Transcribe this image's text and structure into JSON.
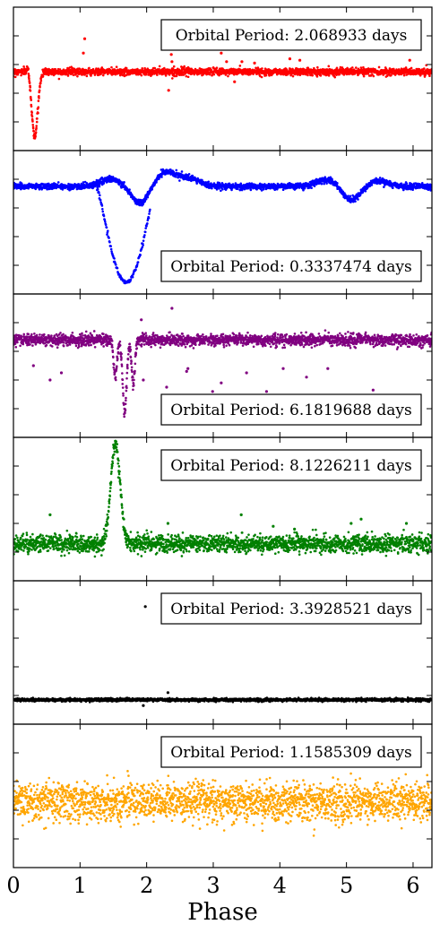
{
  "chart_data": {
    "type": "scatter",
    "xlabel": "Phase",
    "xlim": [
      0,
      6.2832
    ],
    "x_ticks": [
      0,
      1,
      2,
      3,
      4,
      5,
      6
    ],
    "x_tick_labels": [
      "0",
      "1",
      "2",
      "3",
      "4",
      "5",
      "6"
    ],
    "shared_x": true,
    "panels": [
      {
        "name": "Orbital Period: 2.068933 days",
        "color": "#ff0000",
        "label_position": "top-right",
        "ylim": [
          0,
          1
        ],
        "baseline": 0.55,
        "noise": 0.012,
        "features": [
          {
            "center": 0.32,
            "width": 0.045,
            "depth": -0.45,
            "note": "primary dip"
          },
          {
            "center": 0.22,
            "width": 0.02,
            "depth": 0.05,
            "note": "pre-dip bump"
          }
        ],
        "scatter_points": [
          {
            "x": 1.07,
            "y": 0.78
          },
          {
            "x": 1.05,
            "y": 0.68
          },
          {
            "x": 2.35,
            "y": 0.73
          },
          {
            "x": 2.37,
            "y": 0.67
          },
          {
            "x": 2.33,
            "y": 0.42
          },
          {
            "x": 2.38,
            "y": 0.62
          },
          {
            "x": 3.12,
            "y": 0.68
          },
          {
            "x": 3.2,
            "y": 0.62
          },
          {
            "x": 3.32,
            "y": 0.48
          },
          {
            "x": 3.43,
            "y": 0.62
          },
          {
            "x": 3.62,
            "y": 0.61
          },
          {
            "x": 4.15,
            "y": 0.64
          },
          {
            "x": 4.3,
            "y": 0.63
          },
          {
            "x": 5.95,
            "y": 0.63
          }
        ]
      },
      {
        "name": "Orbital Period: 0.3337474 days",
        "color": "#0000ff",
        "label_position": "bottom-right",
        "ylim": [
          0,
          1
        ],
        "baseline": 0.75,
        "noise": 0.01,
        "features": [
          {
            "center": 1.45,
            "width": 0.15,
            "depth": 0.05
          },
          {
            "center": 1.9,
            "width": 0.12,
            "depth": -0.12
          },
          {
            "center": 2.3,
            "width": 0.15,
            "depth": 0.1
          },
          {
            "center": 2.65,
            "width": 0.15,
            "depth": 0.05
          },
          {
            "center": 4.8,
            "width": 0.2,
            "depth": 0.06
          },
          {
            "center": 5.05,
            "width": 0.15,
            "depth": -0.12
          },
          {
            "center": 5.45,
            "width": 0.15,
            "depth": 0.04
          }
        ],
        "deep_branch": {
          "from": 1.25,
          "to": 2.05,
          "min_y": 0.08
        }
      },
      {
        "name": "Orbital Period: 6.1819688 days",
        "color": "#800080",
        "label_position": "bottom-right",
        "ylim": [
          0,
          1
        ],
        "baseline": 0.68,
        "noise": 0.02,
        "features": [
          {
            "center": 1.53,
            "width": 0.025,
            "depth": -0.25
          },
          {
            "center": 1.67,
            "width": 0.03,
            "depth": -0.5
          },
          {
            "center": 1.8,
            "width": 0.025,
            "depth": -0.3
          }
        ],
        "scatter_points": [
          {
            "x": 0.3,
            "y": 0.5
          },
          {
            "x": 0.72,
            "y": 0.45
          },
          {
            "x": 0.55,
            "y": 0.4
          },
          {
            "x": 1.95,
            "y": 0.4
          },
          {
            "x": 2.3,
            "y": 0.35
          },
          {
            "x": 2.62,
            "y": 0.48
          },
          {
            "x": 2.99,
            "y": 0.32
          },
          {
            "x": 3.12,
            "y": 0.38
          },
          {
            "x": 3.5,
            "y": 0.45
          },
          {
            "x": 3.8,
            "y": 0.32
          },
          {
            "x": 4.05,
            "y": 0.48
          },
          {
            "x": 4.4,
            "y": 0.42
          },
          {
            "x": 4.72,
            "y": 0.48
          },
          {
            "x": 5.4,
            "y": 0.33
          },
          {
            "x": 1.92,
            "y": 0.82
          },
          {
            "x": 2.38,
            "y": 0.9
          },
          {
            "x": 2.6,
            "y": 0.46
          }
        ]
      },
      {
        "name": "Orbital Period: 8.1226211 days",
        "color": "#008000",
        "label_position": "top-right",
        "ylim": [
          0,
          1
        ],
        "baseline": 0.26,
        "noise": 0.03,
        "features": [
          {
            "center": 1.53,
            "width": 0.07,
            "depth": 0.68,
            "note": "peak"
          }
        ],
        "scatter_points": [
          {
            "x": 0.55,
            "y": 0.46
          },
          {
            "x": 2.32,
            "y": 0.4
          },
          {
            "x": 3.42,
            "y": 0.46
          },
          {
            "x": 3.9,
            "y": 0.38
          },
          {
            "x": 4.22,
            "y": 0.36
          },
          {
            "x": 5.07,
            "y": 0.4
          },
          {
            "x": 5.22,
            "y": 0.43
          },
          {
            "x": 5.9,
            "y": 0.4
          }
        ]
      },
      {
        "name": "Orbital Period: 3.3928521 days",
        "color": "#000000",
        "label_position": "top-right",
        "ylim": [
          0,
          1
        ],
        "baseline": 0.17,
        "noise": 0.005,
        "features": [],
        "scatter_points": [
          {
            "x": 1.98,
            "y": 0.82
          },
          {
            "x": 2.32,
            "y": 0.22
          },
          {
            "x": 1.95,
            "y": 0.13
          }
        ]
      },
      {
        "name": "Orbital Period: 1.1585309 days",
        "color": "#ffa500",
        "label_position": "top-right",
        "ylim": [
          0,
          1
        ],
        "baseline": 0.46,
        "noise": 0.065,
        "features": []
      }
    ]
  }
}
